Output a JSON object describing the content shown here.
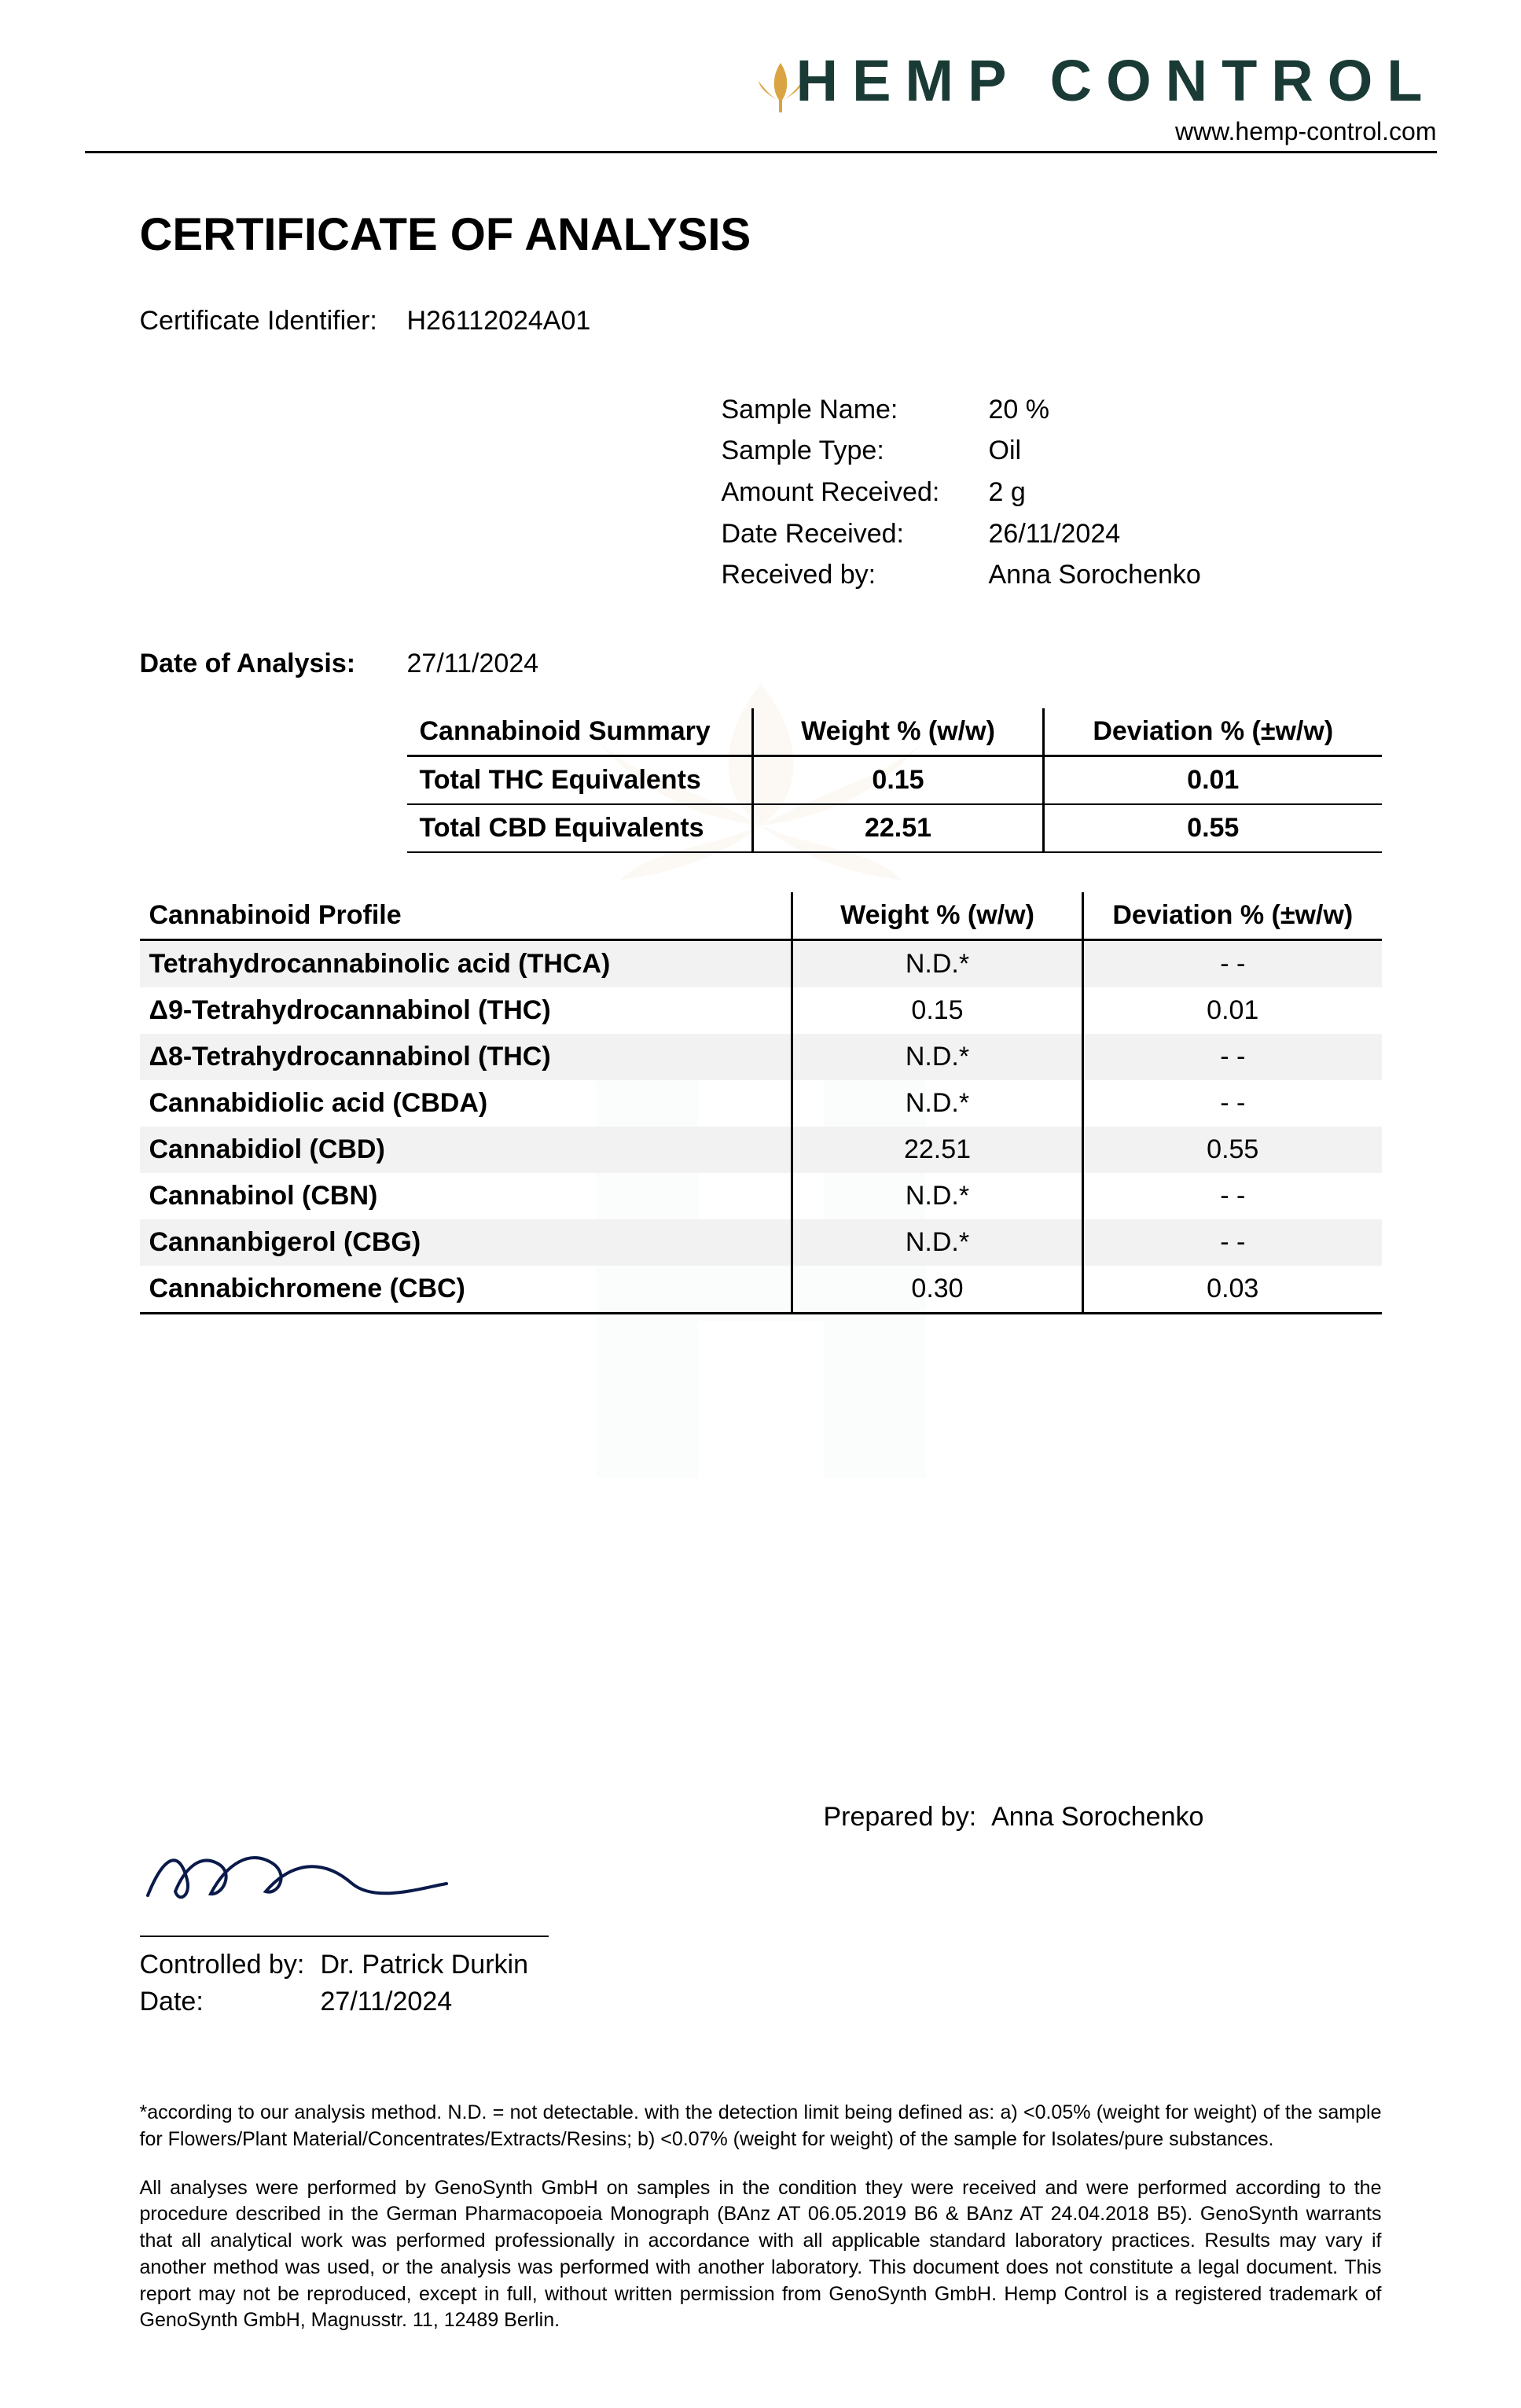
{
  "brand": {
    "name": "HEMP CONTROL",
    "url": "www.hemp-control.com",
    "brand_color": "#1a3a35",
    "leaf_color": "#d9a441"
  },
  "title": "CERTIFICATE OF ANALYSIS",
  "certificate": {
    "id_label": "Certificate Identifier:",
    "id_value": "H26112024A01"
  },
  "sample": {
    "name_label": "Sample Name:",
    "name_value": "20 %",
    "type_label": "Sample Type:",
    "type_value": "Oil",
    "amount_label": "Amount Received:",
    "amount_value": "2 g",
    "date_rec_label": "Date Received:",
    "date_rec_value": "26/11/2024",
    "rec_by_label": "Received by:",
    "rec_by_value": "Anna Sorochenko"
  },
  "analysis_date": {
    "label": "Date of Analysis:",
    "value": "27/11/2024"
  },
  "summary": {
    "headers": [
      "Cannabinoid Summary",
      "Weight % (w/w)",
      "Deviation % (±w/w)"
    ],
    "rows": [
      {
        "label": "Total THC Equivalents",
        "weight": "0.15",
        "dev": "0.01"
      },
      {
        "label": "Total CBD Equivalents",
        "weight": "22.51",
        "dev": "0.55"
      }
    ]
  },
  "profile": {
    "headers": [
      "Cannabinoid Profile",
      "Weight % (w/w)",
      "Deviation % (±w/w)"
    ],
    "rows": [
      {
        "name": "Tetrahydrocannabinolic acid (THCA)",
        "weight": "N.D.*",
        "dev": "- -",
        "alt": true
      },
      {
        "name": "Δ9-Tetrahydrocannabinol (THC)",
        "weight": "0.15",
        "dev": "0.01",
        "alt": false
      },
      {
        "name": "Δ8-Tetrahydrocannabinol (THC)",
        "weight": "N.D.*",
        "dev": "- -",
        "alt": true
      },
      {
        "name": "Cannabidiolic acid (CBDA)",
        "weight": "N.D.*",
        "dev": "- -",
        "alt": false
      },
      {
        "name": "Cannabidiol (CBD)",
        "weight": "22.51",
        "dev": "0.55",
        "alt": true
      },
      {
        "name": "Cannabinol (CBN)",
        "weight": "N.D.*",
        "dev": "- -",
        "alt": false
      },
      {
        "name": "Cannanbigerol (CBG)",
        "weight": "N.D.*",
        "dev": "- -",
        "alt": true
      },
      {
        "name": "Cannabichromene (CBC)",
        "weight": "0.30",
        "dev": "0.03",
        "alt": false
      }
    ]
  },
  "prepared": {
    "label": "Prepared by:",
    "value": "Anna Sorochenko"
  },
  "controlled": {
    "label": "Controlled by:",
    "value": "Dr. Patrick Durkin",
    "date_label": "Date:",
    "date_value": "27/11/2024"
  },
  "footnotes": {
    "note1": "*according to our analysis method. N.D. = not detectable. with the detection limit being defined as: a) <0.05% (weight for weight) of the sample for Flowers/Plant Material/Concentrates/Extracts/Resins; b) <0.07% (weight for weight) of the sample for Isolates/pure substances.",
    "note2": "All analyses were performed by GenoSynth GmbH on samples in the condition they were received and were performed according to the procedure described in the German Pharmacopoeia Monograph (BAnz AT 06.05.2019 B6 & BAnz AT 24.04.2018 B5). GenoSynth warrants that all analytical work was performed professionally in accordance with all applicable standard laboratory practices. Results may vary if another method was used, or the analysis was performed with another laboratory. This document does not constitute a legal document. This report may not be reproduced, except in full, without written permission from GenoSynth GmbH. Hemp Control is a registered trademark of GenoSynth GmbH, Magnusstr. 11, 12489 Berlin."
  },
  "watermark": {
    "leaf_color": "#e8d4a8",
    "h_color": "#e6ecea"
  }
}
